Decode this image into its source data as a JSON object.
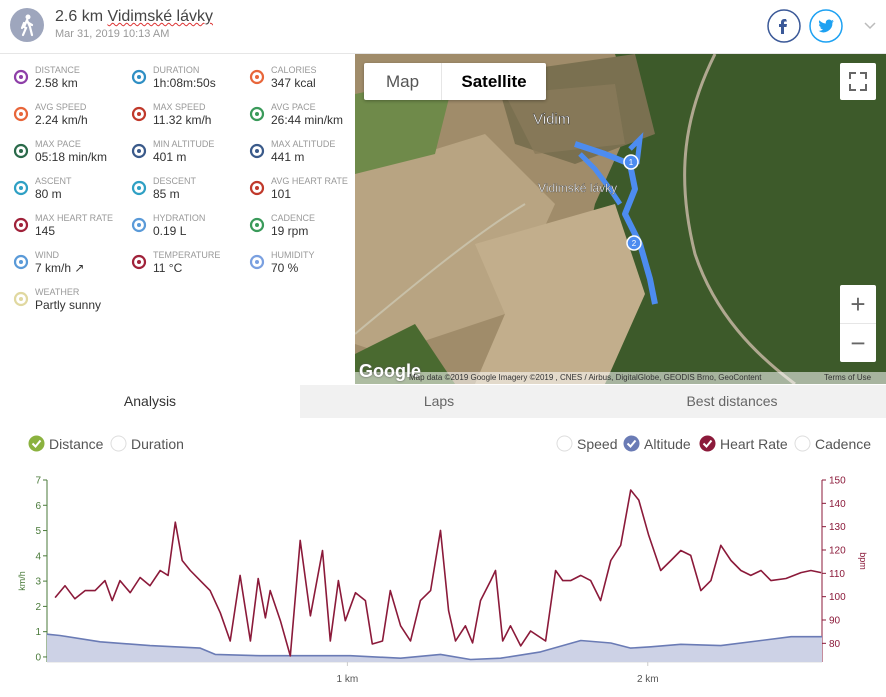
{
  "header": {
    "title": "2.6 km",
    "route": "Vidimské lávky",
    "date": "Mar 31, 2019 10:13 AM"
  },
  "stats": [
    {
      "label": "DISTANCE",
      "value": "2.58 km",
      "color": "#8e3fa8"
    },
    {
      "label": "DURATION",
      "value": "1h:08m:50s",
      "color": "#2f8fc4"
    },
    {
      "label": "CALORIES",
      "value": "347 kcal",
      "color": "#e8663a"
    },
    {
      "label": "AVG SPEED",
      "value": "2.24 km/h",
      "color": "#e8663a"
    },
    {
      "label": "MAX SPEED",
      "value": "11.32 km/h",
      "color": "#c0392b"
    },
    {
      "label": "AVG PACE",
      "value": "26:44 min/km",
      "color": "#3a9a5a"
    },
    {
      "label": "MAX PACE",
      "value": "05:18 min/km",
      "color": "#2a6a4a"
    },
    {
      "label": "MIN ALTITUDE",
      "value": "401 m",
      "color": "#3a5a8a"
    },
    {
      "label": "MAX ALTITUDE",
      "value": "441 m",
      "color": "#3a5a8a"
    },
    {
      "label": "ASCENT",
      "value": "80 m",
      "color": "#2fa0c4"
    },
    {
      "label": "DESCENT",
      "value": "85 m",
      "color": "#2fa0c4"
    },
    {
      "label": "AVG HEART RATE",
      "value": "101",
      "color": "#c0392b"
    },
    {
      "label": "MAX HEART RATE",
      "value": "145",
      "color": "#a0223a"
    },
    {
      "label": "HYDRATION",
      "value": "0.19 L",
      "color": "#5a9ad8"
    },
    {
      "label": "CADENCE",
      "value": "19 rpm",
      "color": "#3a9a5a"
    },
    {
      "label": "WIND",
      "value": "7 km/h ↗",
      "color": "#5a9ad8"
    },
    {
      "label": "TEMPERATURE",
      "value": "11 °C",
      "color": "#a0223a"
    },
    {
      "label": "HUMIDITY",
      "value": "70 %",
      "color": "#7aa0e0"
    },
    {
      "label": "WEATHER",
      "value": "Partly sunny",
      "color": "#e0d8a0"
    }
  ],
  "map": {
    "buttons": [
      "Map",
      "Satellite"
    ],
    "places": [
      "Vidim",
      "Vidimské lávky"
    ],
    "markers": [
      "1",
      "2"
    ],
    "zoom": [
      "+",
      "−"
    ],
    "logo": "Google",
    "attribution": "Map data ©2019 Google Imagery ©2019 , CNES / Airbus, DigitalGlobe, GEODIS Brno, GeoContent",
    "terms": "Terms of Use"
  },
  "tabs": [
    "Analysis",
    "Laps",
    "Best distances"
  ],
  "x_toggles": [
    {
      "name": "Distance",
      "checked": true,
      "color": "#8bb23f"
    },
    {
      "name": "Duration",
      "checked": false,
      "color": "#8bb23f"
    }
  ],
  "series_toggles": [
    {
      "name": "Speed",
      "checked": false,
      "color": "#5a8a3a"
    },
    {
      "name": "Altitude",
      "checked": true,
      "color": "#6a7bb5"
    },
    {
      "name": "Heart Rate",
      "checked": true,
      "color": "#8b1a3a"
    },
    {
      "name": "Cadence",
      "checked": false,
      "color": "#999999"
    }
  ],
  "chart": {
    "type": "line",
    "ylabel": "km/h",
    "y2label": "bpm",
    "xlim": [
      0,
      2.58
    ],
    "xticks": [
      {
        "value": 1,
        "label": "1 km"
      },
      {
        "value": 2,
        "label": "2 km"
      }
    ],
    "ylim": [
      -0.2,
      7
    ],
    "yticks": [
      0,
      1,
      2,
      3,
      4,
      5,
      6,
      7
    ],
    "y2lim": [
      72,
      150
    ],
    "y2ticks": [
      80,
      90,
      100,
      110,
      120,
      130,
      140,
      150
    ],
    "series": [
      {
        "name": "Altitude",
        "color": "#6a7bb5",
        "fill": "#cdd2e6",
        "x": [
          0,
          0.043,
          0.177,
          0.343,
          0.51,
          0.56,
          0.71,
          0.843,
          1.01,
          1.177,
          1.31,
          1.41,
          1.51,
          1.643,
          1.777,
          1.877,
          1.943,
          2.01,
          2.11,
          2.243,
          2.377,
          2.477,
          2.58
        ],
        "values": [
          0.9,
          0.85,
          0.6,
          0.45,
          0.35,
          0.1,
          0.05,
          0.05,
          0.05,
          -0.05,
          0.1,
          -0.1,
          -0.05,
          0.2,
          0.65,
          0.55,
          0.35,
          0.4,
          0.5,
          0.45,
          0.65,
          0.8,
          0.8
        ]
      },
      {
        "name": "Heart Rate",
        "color": "#8b1a3a",
        "axis": "y2",
        "x": [
          0.027,
          0.06,
          0.093,
          0.127,
          0.16,
          0.193,
          0.217,
          0.243,
          0.277,
          0.31,
          0.343,
          0.377,
          0.403,
          0.427,
          0.45,
          0.477,
          0.51,
          0.543,
          0.577,
          0.61,
          0.643,
          0.677,
          0.703,
          0.727,
          0.743,
          0.777,
          0.81,
          0.843,
          0.877,
          0.917,
          0.943,
          0.97,
          0.993,
          1.027,
          1.06,
          1.083,
          1.117,
          1.143,
          1.177,
          1.21,
          1.243,
          1.277,
          1.31,
          1.337,
          1.36,
          1.393,
          1.417,
          1.443,
          1.477,
          1.493,
          1.517,
          1.543,
          1.577,
          1.61,
          1.66,
          1.693,
          1.717,
          1.743,
          1.777,
          1.81,
          1.843,
          1.877,
          1.91,
          1.943,
          1.97,
          2.003,
          2.043,
          2.077,
          2.11,
          2.143,
          2.177,
          2.21,
          2.243,
          2.277,
          2.31,
          2.343,
          2.377,
          2.41,
          2.46,
          2.51,
          2.543,
          2.577
        ],
        "values": [
          99.6,
          104.7,
          99.1,
          102.6,
          102.6,
          106.9,
          98.3,
          106.9,
          101.7,
          108.2,
          104.7,
          111.2,
          109.1,
          131.9,
          115.5,
          111.2,
          106.9,
          102.6,
          93.1,
          81.0,
          109.1,
          81.0,
          107.8,
          90.9,
          102.6,
          89.7,
          74.6,
          124.1,
          91.8,
          119.8,
          81.0,
          106.9,
          89.7,
          101.7,
          98.3,
          79.7,
          81.0,
          102.6,
          87.5,
          81.0,
          98.3,
          102.6,
          128.4,
          94.0,
          81.0,
          87.5,
          80.2,
          98.3,
          106.9,
          111.2,
          81.0,
          87.5,
          78.9,
          85.3,
          81.0,
          111.2,
          106.9,
          106.9,
          109.1,
          106.9,
          98.3,
          115.5,
          122.0,
          145.7,
          141.4,
          126.3,
          111.2,
          115.5,
          119.8,
          117.7,
          102.6,
          106.9,
          122.0,
          115.5,
          111.2,
          109.1,
          111.2,
          106.9,
          107.8,
          110.3,
          111.2,
          110.3
        ]
      }
    ]
  }
}
